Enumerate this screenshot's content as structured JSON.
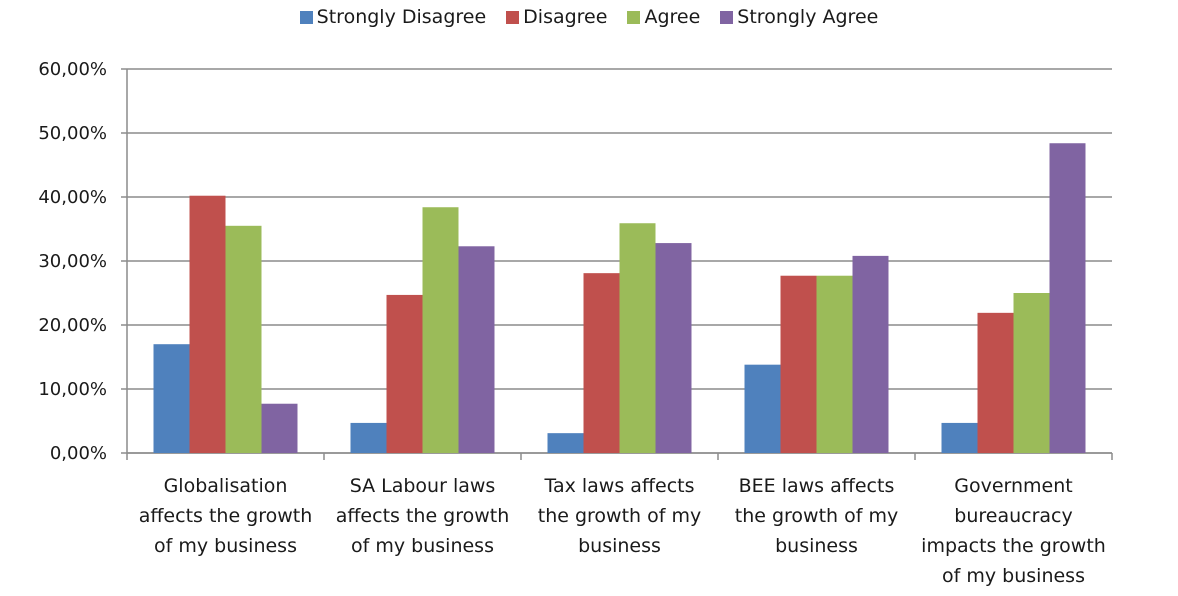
{
  "chart_data": {
    "type": "bar",
    "title": "",
    "xlabel": "",
    "ylabel": "",
    "ylim": [
      0,
      60
    ],
    "ytick_step": 10,
    "ytick_labels": [
      "0,00%",
      "10,00%",
      "20,00%",
      "30,00%",
      "40,00%",
      "50,00%",
      "60,00%"
    ],
    "grid": true,
    "legend_position": "top",
    "categories": [
      [
        "Globalisation",
        "affects the growth",
        "of my business"
      ],
      [
        "SA Labour laws",
        "affects the growth",
        "of my business"
      ],
      [
        "Tax laws affects",
        "the growth of my",
        "business"
      ],
      [
        "BEE laws affects",
        "the growth of my",
        "business"
      ],
      [
        "Government",
        "bureaucracy",
        "impacts the growth",
        "of my business"
      ]
    ],
    "series": [
      {
        "name": "Strongly Disagree",
        "color": "#4f81bd",
        "values": [
          17.0,
          4.7,
          3.1,
          13.8,
          4.7
        ]
      },
      {
        "name": "Disagree",
        "color": "#c0504d",
        "values": [
          40.2,
          24.7,
          28.1,
          27.7,
          21.9
        ]
      },
      {
        "name": "Agree",
        "color": "#9bbb59",
        "values": [
          35.5,
          38.4,
          35.9,
          27.7,
          25.0
        ]
      },
      {
        "name": "Strongly Agree",
        "color": "#8064a2",
        "values": [
          7.7,
          32.3,
          32.8,
          30.8,
          48.4
        ]
      }
    ]
  }
}
